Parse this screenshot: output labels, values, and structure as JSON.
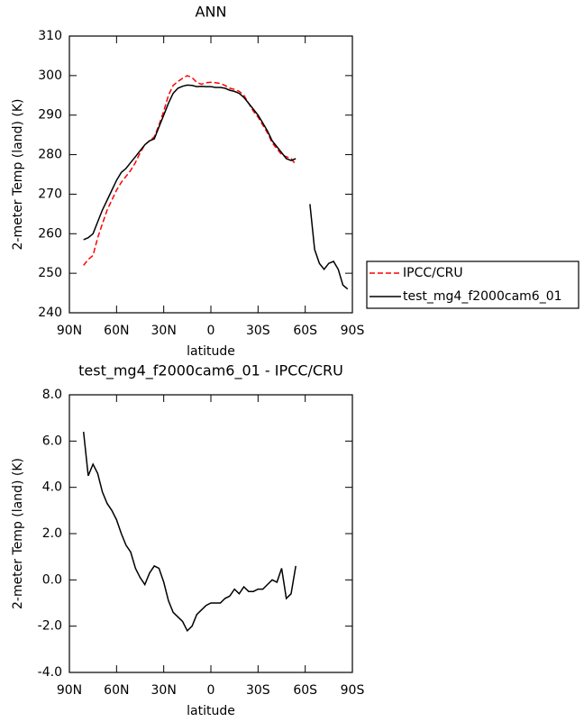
{
  "chart_data": [
    {
      "type": "line",
      "title": "ANN",
      "xlabel": "latitude",
      "ylabel": "2-meter Temp (land) (K)",
      "x": [
        81,
        78,
        75,
        72,
        69,
        66,
        63,
        60,
        57,
        54,
        51,
        48,
        45,
        42,
        39,
        36,
        33,
        30,
        27,
        24,
        21,
        18,
        15,
        12,
        9,
        6,
        3,
        0,
        -3,
        -6,
        -9,
        -12,
        -15,
        -18,
        -21,
        -24,
        -27,
        -30,
        -33,
        -36,
        -39,
        -42,
        -45,
        -48,
        -51,
        -54,
        -57,
        -60,
        -63,
        -66,
        -69,
        -72,
        -75,
        -78,
        -81,
        -84,
        -87
      ],
      "series": [
        {
          "name": "IPCC/CRU",
          "color": "#ff0000",
          "line_style": "dashed",
          "values": [
            252,
            253.5,
            254.5,
            259,
            262.5,
            266,
            268.5,
            271,
            273,
            274.5,
            276,
            278,
            280.5,
            282.5,
            283.5,
            284.5,
            287.5,
            291,
            295,
            297.5,
            298.5,
            299.3,
            300,
            299.5,
            298.3,
            297.8,
            298.2,
            298.3,
            298.2,
            298,
            297.5,
            296.8,
            296.5,
            296,
            295,
            293,
            291,
            289.5,
            287.5,
            285.5,
            283,
            281.5,
            280,
            279.5,
            279,
            277.5,
            null,
            null,
            null,
            null,
            null,
            null,
            null,
            null,
            null,
            null,
            null
          ]
        },
        {
          "name": "test_mg4_f2000cam6_01",
          "color": "#000000",
          "line_style": "solid",
          "values": [
            258.5,
            259,
            260,
            263,
            266,
            268.5,
            271,
            273.5,
            275.5,
            276.5,
            278,
            279.5,
            281,
            282.5,
            283.5,
            284,
            287,
            290,
            293,
            295.5,
            296.8,
            297.3,
            297.6,
            297.5,
            297.2,
            297.3,
            297.2,
            297.2,
            297,
            297,
            296.8,
            296.3,
            296,
            295.5,
            294.5,
            293,
            291.5,
            290,
            288,
            286,
            283.5,
            282,
            280.5,
            279,
            278.5,
            279,
            null,
            null,
            267.5,
            256,
            252.5,
            251,
            252.5,
            253,
            251,
            247,
            246
          ]
        }
      ],
      "xlim": [
        90,
        -90
      ],
      "xticks": [
        {
          "value": 90,
          "label": "90N"
        },
        {
          "value": 60,
          "label": "60N"
        },
        {
          "value": 30,
          "label": "30N"
        },
        0,
        {
          "value": -30,
          "label": "30S"
        },
        {
          "value": -60,
          "label": "60S"
        },
        {
          "value": -90,
          "label": "90S"
        }
      ],
      "ylim": [
        240,
        310
      ],
      "yticks": [
        240,
        250,
        260,
        270,
        280,
        290,
        300,
        310
      ],
      "legend": "right"
    },
    {
      "type": "line",
      "title": "test_mg4_f2000cam6_01 - IPCC/CRU",
      "xlabel": "latitude",
      "ylabel": "2-meter Temp (land) (K)",
      "x": [
        81,
        78,
        75,
        72,
        69,
        66,
        63,
        60,
        57,
        54,
        51,
        48,
        45,
        42,
        39,
        36,
        33,
        30,
        27,
        24,
        21,
        18,
        15,
        12,
        9,
        6,
        3,
        0,
        -3,
        -6,
        -9,
        -12,
        -15,
        -18,
        -21,
        -24,
        -27,
        -30,
        -33,
        -36,
        -39,
        -42,
        -45,
        -48,
        -51,
        -54
      ],
      "series": [
        {
          "color": "#000000",
          "line_style": "solid",
          "values": [
            6.4,
            4.5,
            5.0,
            4.6,
            3.8,
            3.3,
            3.0,
            2.6,
            2.0,
            1.5,
            1.2,
            0.5,
            0.1,
            -0.2,
            0.3,
            0.6,
            0.5,
            -0.1,
            -0.9,
            -1.4,
            -1.6,
            -1.8,
            -2.2,
            -2.0,
            -1.5,
            -1.3,
            -1.1,
            -1.0,
            -1.0,
            -1.0,
            -0.8,
            -0.7,
            -0.4,
            -0.6,
            -0.3,
            -0.5,
            -0.5,
            -0.4,
            -0.4,
            -0.2,
            0.0,
            -0.1,
            0.5,
            -0.8,
            -0.6,
            0.6
          ]
        }
      ],
      "xlim": [
        90,
        -90
      ],
      "xticks": [
        {
          "value": 90,
          "label": "90N"
        },
        {
          "value": 60,
          "label": "60N"
        },
        {
          "value": 30,
          "label": "30N"
        },
        0,
        {
          "value": -30,
          "label": "30S"
        },
        {
          "value": -60,
          "label": "60S"
        },
        {
          "value": -90,
          "label": "90S"
        }
      ],
      "ylim": [
        -4,
        8
      ],
      "yticks": [
        {
          "value": -4,
          "label": "-4.0"
        },
        {
          "value": -2,
          "label": "-2.0"
        },
        {
          "value": 0,
          "label": "0.0"
        },
        {
          "value": 2,
          "label": "2.0"
        },
        {
          "value": 4,
          "label": "4.0"
        },
        {
          "value": 6,
          "label": "6.0"
        },
        {
          "value": 8,
          "label": "8.0"
        }
      ]
    }
  ]
}
